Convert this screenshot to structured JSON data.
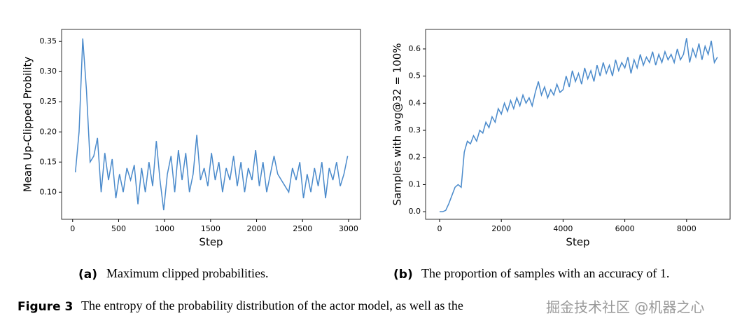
{
  "chart_data": [
    {
      "type": "line",
      "xlabel": "Step",
      "ylabel": "Mean Up-Clipped Probility",
      "caption_label": "(a)",
      "caption": "Maximum clipped probabilities.",
      "x": [
        30,
        70,
        110,
        150,
        190,
        230,
        270,
        310,
        350,
        390,
        430,
        470,
        510,
        550,
        590,
        630,
        670,
        710,
        750,
        790,
        830,
        870,
        910,
        950,
        990,
        1030,
        1070,
        1110,
        1150,
        1190,
        1230,
        1270,
        1310,
        1350,
        1390,
        1430,
        1470,
        1510,
        1550,
        1590,
        1630,
        1670,
        1710,
        1750,
        1790,
        1830,
        1870,
        1910,
        1950,
        1990,
        2030,
        2070,
        2110,
        2150,
        2190,
        2230,
        2270,
        2310,
        2350,
        2390,
        2430,
        2470,
        2510,
        2550,
        2590,
        2630,
        2670,
        2710,
        2750,
        2790,
        2830,
        2870,
        2910,
        2950,
        2990
      ],
      "series": [
        {
          "color": "#4a8acb",
          "values": [
            0.133,
            0.2,
            0.355,
            0.27,
            0.15,
            0.16,
            0.19,
            0.1,
            0.165,
            0.12,
            0.155,
            0.09,
            0.13,
            0.1,
            0.14,
            0.12,
            0.145,
            0.08,
            0.14,
            0.1,
            0.15,
            0.11,
            0.185,
            0.12,
            0.07,
            0.13,
            0.16,
            0.1,
            0.17,
            0.12,
            0.165,
            0.1,
            0.13,
            0.195,
            0.12,
            0.14,
            0.11,
            0.165,
            0.12,
            0.15,
            0.1,
            0.14,
            0.12,
            0.16,
            0.11,
            0.15,
            0.1,
            0.14,
            0.12,
            0.17,
            0.11,
            0.15,
            0.1,
            0.13,
            0.16,
            0.13,
            0.12,
            0.11,
            0.1,
            0.14,
            0.12,
            0.15,
            0.09,
            0.13,
            0.1,
            0.14,
            0.11,
            0.15,
            0.09,
            0.14,
            0.12,
            0.15,
            0.11,
            0.13,
            0.16
          ]
        }
      ],
      "xlim": [
        -120,
        3130
      ],
      "xticks": [
        0,
        500,
        1000,
        1500,
        2000,
        2500,
        3000
      ],
      "ylim": [
        0.055,
        0.37
      ],
      "yticks": [
        {
          "value": 0.1,
          "label": "0.10"
        },
        {
          "value": 0.15,
          "label": "0.15"
        },
        {
          "value": 0.2,
          "label": "0.20"
        },
        {
          "value": 0.25,
          "label": "0.25"
        },
        {
          "value": 0.3,
          "label": "0.30"
        },
        {
          "value": 0.35,
          "label": "0.35"
        }
      ],
      "grid": false
    },
    {
      "type": "line",
      "xlabel": "Step",
      "ylabel": "Samples with avg@32 = 100%",
      "caption_label": "(b)",
      "caption": "The proportion of samples with an accuracy of 1.",
      "x": [
        0,
        100,
        200,
        300,
        400,
        500,
        600,
        700,
        800,
        900,
        1000,
        1100,
        1200,
        1300,
        1400,
        1500,
        1600,
        1700,
        1800,
        1900,
        2000,
        2100,
        2200,
        2300,
        2400,
        2500,
        2600,
        2700,
        2800,
        2900,
        3000,
        3100,
        3200,
        3300,
        3400,
        3500,
        3600,
        3700,
        3800,
        3900,
        4000,
        4100,
        4200,
        4300,
        4400,
        4500,
        4600,
        4700,
        4800,
        4900,
        5000,
        5100,
        5200,
        5300,
        5400,
        5500,
        5600,
        5700,
        5800,
        5900,
        6000,
        6100,
        6200,
        6300,
        6400,
        6500,
        6600,
        6700,
        6800,
        6900,
        7000,
        7100,
        7200,
        7300,
        7400,
        7500,
        7600,
        7700,
        7800,
        7900,
        8000,
        8100,
        8200,
        8300,
        8400,
        8500,
        8600,
        8700,
        8800,
        8900,
        9000
      ],
      "series": [
        {
          "color": "#4a8acb",
          "values": [
            0,
            0,
            0.005,
            0.03,
            0.06,
            0.09,
            0.1,
            0.09,
            0.22,
            0.26,
            0.25,
            0.28,
            0.26,
            0.3,
            0.29,
            0.33,
            0.31,
            0.35,
            0.33,
            0.38,
            0.36,
            0.4,
            0.37,
            0.41,
            0.38,
            0.42,
            0.39,
            0.43,
            0.4,
            0.42,
            0.39,
            0.44,
            0.48,
            0.43,
            0.46,
            0.42,
            0.45,
            0.43,
            0.47,
            0.44,
            0.45,
            0.5,
            0.46,
            0.52,
            0.48,
            0.51,
            0.47,
            0.53,
            0.49,
            0.52,
            0.48,
            0.54,
            0.5,
            0.55,
            0.51,
            0.54,
            0.5,
            0.56,
            0.52,
            0.55,
            0.53,
            0.57,
            0.51,
            0.56,
            0.53,
            0.58,
            0.54,
            0.57,
            0.55,
            0.59,
            0.54,
            0.58,
            0.55,
            0.59,
            0.56,
            0.58,
            0.55,
            0.6,
            0.56,
            0.58,
            0.64,
            0.55,
            0.6,
            0.57,
            0.62,
            0.56,
            0.61,
            0.58,
            0.63,
            0.55,
            0.57
          ]
        }
      ],
      "xlim": [
        -453,
        9410
      ],
      "xticks": [
        0,
        2000,
        4000,
        6000,
        8000
      ],
      "ylim": [
        -0.028,
        0.672
      ],
      "yticks": [
        {
          "value": 0,
          "label": "0.0"
        },
        {
          "value": 0.1,
          "label": "0.1"
        },
        {
          "value": 0.2,
          "label": "0.2"
        },
        {
          "value": 0.3,
          "label": "0.3"
        },
        {
          "value": 0.4,
          "label": "0.4"
        },
        {
          "value": 0.5,
          "label": "0.5"
        },
        {
          "value": 0.6,
          "label": "0.6"
        }
      ],
      "grid": false
    }
  ],
  "figure_caption": {
    "label": "Figure 3",
    "text": "The entropy of the probability distribution of the actor model, as well as the"
  },
  "watermark": "掘金技术社区 @机器之心"
}
